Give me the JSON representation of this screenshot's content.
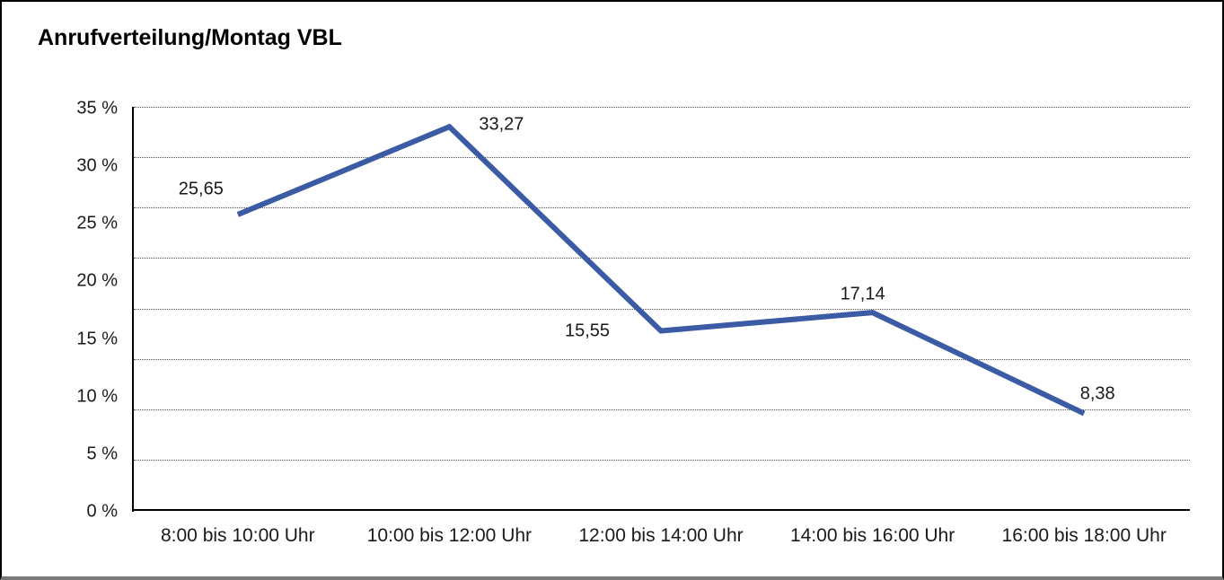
{
  "title": "Anrufverteilung/Montag VBL",
  "chart_data": {
    "type": "line",
    "title": "Anrufverteilung/Montag VBL",
    "categories": [
      "8:00 bis 10:00 Uhr",
      "10:00 bis 12:00 Uhr",
      "12:00 bis 14:00 Uhr",
      "14:00 bis 16:00 Uhr",
      "16:00 bis 18:00 Uhr"
    ],
    "values": [
      25.65,
      33.27,
      15.55,
      17.14,
      8.38
    ],
    "data_labels": [
      "25,65",
      "33,27",
      "15,55",
      "17,14",
      "8,38"
    ],
    "y_tick_labels": [
      "35 %",
      "30 %",
      "25 %",
      "20 %",
      "15 %",
      "10 %",
      "5 %",
      "0 %"
    ],
    "ylim": [
      0,
      35
    ],
    "xlabel": "",
    "ylabel": "",
    "legend": "none",
    "grid": "horizontal dotted",
    "colors": {
      "line": "#3B5BA5",
      "axis": "#000000",
      "grid": "#555555",
      "text": "#1A1A1A",
      "frame": "#000000",
      "frame_bottom": "#7A7A7A",
      "background": "#FFFFFF"
    }
  }
}
